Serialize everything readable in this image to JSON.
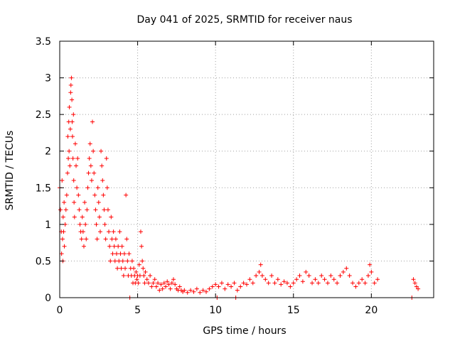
{
  "chart_data": {
    "type": "scatter",
    "title": "Day 041 of 2025, SRMTID for receiver naus",
    "xlabel": "GPS time / hours",
    "ylabel": "SRMTID / TECUs",
    "xlim": [
      0,
      24
    ],
    "ylim": [
      0,
      3.5
    ],
    "x_ticks": [
      0,
      5,
      10,
      15,
      20
    ],
    "y_ticks": [
      0,
      0.5,
      1,
      1.5,
      2,
      2.5,
      3,
      3.5
    ],
    "x_tick_labels": [
      "0",
      "5",
      "10",
      "15",
      "20"
    ],
    "y_tick_labels": [
      "0",
      "0.5",
      "1",
      "1.5",
      "2",
      "2.5",
      "3",
      "3.5"
    ],
    "grid": true,
    "marker": "+",
    "color": "#ff0000",
    "series": [
      {
        "name": "SRMTID",
        "points": [
          [
            0.0,
            1.5
          ],
          [
            0.05,
            1.2
          ],
          [
            0.1,
            0.9
          ],
          [
            0.12,
            0.6
          ],
          [
            0.15,
            1.6
          ],
          [
            0.18,
            0.8
          ],
          [
            0.2,
            0.5
          ],
          [
            0.22,
            1.1
          ],
          [
            0.25,
            0.9
          ],
          [
            0.28,
            1.3
          ],
          [
            0.3,
            0.7
          ],
          [
            0.35,
            1.0
          ],
          [
            0.4,
            1.2
          ],
          [
            0.45,
            1.4
          ],
          [
            0.5,
            1.7
          ],
          [
            0.52,
            2.2
          ],
          [
            0.55,
            1.9
          ],
          [
            0.58,
            2.4
          ],
          [
            0.6,
            2.0
          ],
          [
            0.62,
            2.6
          ],
          [
            0.65,
            1.8
          ],
          [
            0.68,
            2.3
          ],
          [
            0.7,
            2.8
          ],
          [
            0.72,
            2.9
          ],
          [
            0.75,
            3.0
          ],
          [
            0.78,
            2.7
          ],
          [
            0.8,
            2.4
          ],
          [
            0.82,
            2.2
          ],
          [
            0.85,
            1.9
          ],
          [
            0.88,
            2.5
          ],
          [
            0.9,
            1.6
          ],
          [
            0.92,
            1.3
          ],
          [
            0.95,
            1.1
          ],
          [
            1.0,
            2.1
          ],
          [
            1.05,
            1.8
          ],
          [
            1.1,
            1.5
          ],
          [
            1.15,
            1.9
          ],
          [
            1.2,
            1.4
          ],
          [
            1.25,
            1.2
          ],
          [
            1.3,
            1.0
          ],
          [
            1.35,
            0.9
          ],
          [
            1.4,
            0.8
          ],
          [
            1.45,
            1.1
          ],
          [
            1.5,
            0.9
          ],
          [
            1.55,
            0.7
          ],
          [
            1.6,
            1.3
          ],
          [
            1.65,
            1.0
          ],
          [
            1.7,
            0.8
          ],
          [
            1.75,
            1.2
          ],
          [
            1.8,
            1.5
          ],
          [
            1.85,
            1.7
          ],
          [
            1.9,
            1.9
          ],
          [
            1.95,
            2.1
          ],
          [
            2.0,
            1.8
          ],
          [
            2.05,
            1.6
          ],
          [
            2.1,
            2.4
          ],
          [
            2.15,
            2.0
          ],
          [
            2.2,
            1.7
          ],
          [
            2.25,
            1.4
          ],
          [
            2.3,
            1.2
          ],
          [
            2.35,
            1.0
          ],
          [
            2.4,
            0.8
          ],
          [
            2.45,
            1.5
          ],
          [
            2.5,
            1.3
          ],
          [
            2.55,
            1.1
          ],
          [
            2.6,
            0.9
          ],
          [
            2.65,
            2.0
          ],
          [
            2.7,
            1.8
          ],
          [
            2.75,
            1.6
          ],
          [
            2.8,
            1.4
          ],
          [
            2.85,
            1.2
          ],
          [
            2.9,
            1.0
          ],
          [
            2.95,
            0.8
          ],
          [
            3.0,
            1.9
          ],
          [
            3.05,
            1.5
          ],
          [
            3.1,
            1.2
          ],
          [
            3.15,
            0.9
          ],
          [
            3.2,
            0.7
          ],
          [
            3.25,
            0.5
          ],
          [
            3.3,
            1.1
          ],
          [
            3.35,
            0.8
          ],
          [
            3.4,
            0.6
          ],
          [
            3.45,
            0.9
          ],
          [
            3.5,
            0.7
          ],
          [
            3.55,
            0.5
          ],
          [
            3.6,
            0.8
          ],
          [
            3.65,
            0.6
          ],
          [
            3.7,
            0.4
          ],
          [
            3.75,
            0.7
          ],
          [
            3.8,
            0.5
          ],
          [
            3.85,
            0.9
          ],
          [
            3.9,
            0.6
          ],
          [
            3.95,
            0.4
          ],
          [
            4.0,
            0.7
          ],
          [
            4.05,
            0.5
          ],
          [
            4.1,
            0.3
          ],
          [
            4.15,
            0.6
          ],
          [
            4.2,
            0.4
          ],
          [
            4.25,
            1.4
          ],
          [
            4.3,
            0.8
          ],
          [
            4.35,
            0.5
          ],
          [
            4.4,
            0.3
          ],
          [
            4.45,
            0.6
          ],
          [
            4.5,
            0.0
          ],
          [
            4.55,
            0.4
          ],
          [
            4.6,
            0.3
          ],
          [
            4.65,
            0.5
          ],
          [
            4.7,
            0.2
          ],
          [
            4.75,
            0.4
          ],
          [
            4.8,
            0.3
          ],
          [
            4.85,
            0.2
          ],
          [
            4.9,
            0.35
          ],
          [
            4.95,
            0.25
          ],
          [
            5.0,
            0.3
          ],
          [
            5.05,
            0.2
          ],
          [
            5.1,
            0.45
          ],
          [
            5.15,
            0.3
          ],
          [
            5.2,
            0.9
          ],
          [
            5.25,
            0.7
          ],
          [
            5.3,
            0.5
          ],
          [
            5.35,
            0.4
          ],
          [
            5.4,
            0.3
          ],
          [
            5.45,
            0.2
          ],
          [
            5.5,
            0.35
          ],
          [
            5.6,
            0.25
          ],
          [
            5.7,
            0.2
          ],
          [
            5.8,
            0.3
          ],
          [
            5.9,
            0.15
          ],
          [
            6.0,
            0.2
          ],
          [
            6.1,
            0.25
          ],
          [
            6.2,
            0.15
          ],
          [
            6.3,
            0.2
          ],
          [
            6.4,
            0.1
          ],
          [
            6.5,
            0.18
          ],
          [
            6.6,
            0.12
          ],
          [
            6.7,
            0.2
          ],
          [
            6.8,
            0.15
          ],
          [
            6.9,
            0.22
          ],
          [
            7.0,
            0.18
          ],
          [
            7.1,
            0.12
          ],
          [
            7.2,
            0.2
          ],
          [
            7.3,
            0.25
          ],
          [
            7.4,
            0.18
          ],
          [
            7.5,
            0.12
          ],
          [
            7.6,
            0.1
          ],
          [
            7.7,
            0.15
          ],
          [
            7.8,
            0.1
          ],
          [
            7.9,
            0.08
          ],
          [
            8.0,
            0.1
          ],
          [
            8.2,
            0.07
          ],
          [
            8.4,
            0.1
          ],
          [
            8.6,
            0.08
          ],
          [
            8.8,
            0.12
          ],
          [
            9.0,
            0.07
          ],
          [
            9.2,
            0.1
          ],
          [
            9.4,
            0.08
          ],
          [
            9.6,
            0.12
          ],
          [
            9.8,
            0.15
          ],
          [
            10.0,
            0.18
          ],
          [
            10.1,
            0.0
          ],
          [
            10.2,
            0.15
          ],
          [
            10.4,
            0.2
          ],
          [
            10.6,
            0.12
          ],
          [
            10.8,
            0.18
          ],
          [
            11.0,
            0.15
          ],
          [
            11.2,
            0.2
          ],
          [
            11.3,
            0.0
          ],
          [
            11.4,
            0.1
          ],
          [
            11.6,
            0.15
          ],
          [
            11.8,
            0.2
          ],
          [
            12.0,
            0.18
          ],
          [
            12.2,
            0.25
          ],
          [
            12.4,
            0.2
          ],
          [
            12.6,
            0.3
          ],
          [
            12.8,
            0.35
          ],
          [
            12.9,
            0.45
          ],
          [
            13.0,
            0.3
          ],
          [
            13.2,
            0.25
          ],
          [
            13.4,
            0.2
          ],
          [
            13.6,
            0.3
          ],
          [
            13.8,
            0.2
          ],
          [
            14.0,
            0.25
          ],
          [
            14.2,
            0.18
          ],
          [
            14.4,
            0.22
          ],
          [
            14.6,
            0.2
          ],
          [
            14.8,
            0.15
          ],
          [
            15.0,
            0.2
          ],
          [
            15.2,
            0.25
          ],
          [
            15.4,
            0.3
          ],
          [
            15.6,
            0.22
          ],
          [
            15.8,
            0.35
          ],
          [
            16.0,
            0.3
          ],
          [
            16.2,
            0.2
          ],
          [
            16.4,
            0.25
          ],
          [
            16.6,
            0.2
          ],
          [
            16.8,
            0.3
          ],
          [
            17.0,
            0.25
          ],
          [
            17.2,
            0.2
          ],
          [
            17.4,
            0.3
          ],
          [
            17.6,
            0.25
          ],
          [
            17.8,
            0.2
          ],
          [
            18.0,
            0.3
          ],
          [
            18.2,
            0.35
          ],
          [
            18.4,
            0.4
          ],
          [
            18.6,
            0.3
          ],
          [
            18.8,
            0.2
          ],
          [
            19.0,
            0.15
          ],
          [
            19.2,
            0.2
          ],
          [
            19.4,
            0.25
          ],
          [
            19.6,
            0.2
          ],
          [
            19.8,
            0.3
          ],
          [
            19.9,
            0.45
          ],
          [
            20.0,
            0.35
          ],
          [
            20.2,
            0.2
          ],
          [
            20.4,
            0.25
          ],
          [
            22.6,
            0.0
          ],
          [
            22.7,
            0.25
          ],
          [
            22.8,
            0.2
          ],
          [
            22.9,
            0.15
          ],
          [
            23.0,
            0.12
          ]
        ]
      }
    ]
  }
}
